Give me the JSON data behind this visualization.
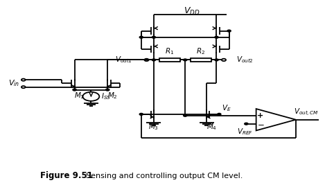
{
  "title": "Figure 9.51",
  "caption": "Sensing and controlling output CM level.",
  "fig_width": 4.82,
  "fig_height": 2.67,
  "dpi": 100,
  "bg_color": "#ffffff",
  "lw": 1.3,
  "fs_label": 7.5,
  "fs_title": 8.5,
  "fs_caption": 8.0,
  "fs_vdd": 9.0,
  "fs_vin": 8.0
}
